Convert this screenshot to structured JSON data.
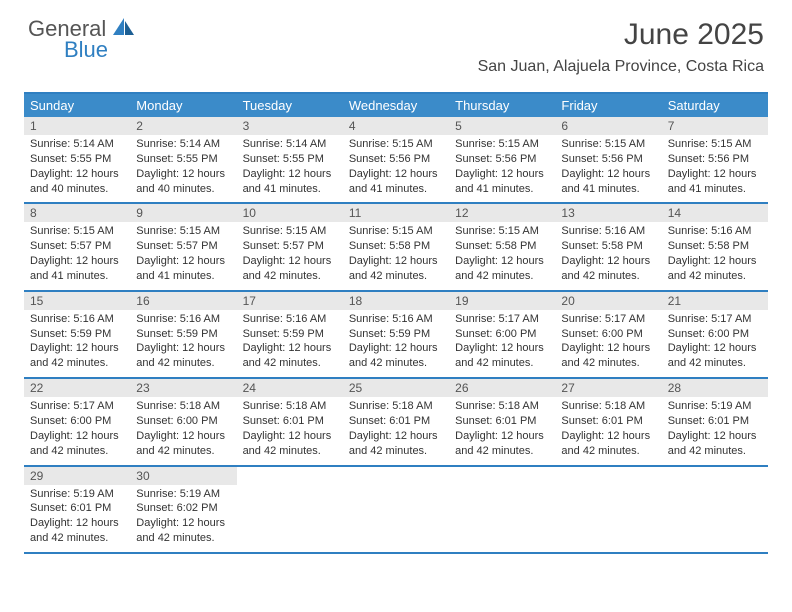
{
  "logo": {
    "text1": "General",
    "text2": "Blue"
  },
  "title": "June 2025",
  "location": "San Juan, Alajuela Province, Costa Rica",
  "colors": {
    "header_bar": "#3b8bc9",
    "accent_border": "#2f7fc1",
    "daynum_bg": "#e8e8e8",
    "text": "#333333"
  },
  "daynames": [
    "Sunday",
    "Monday",
    "Tuesday",
    "Wednesday",
    "Thursday",
    "Friday",
    "Saturday"
  ],
  "weeks": [
    [
      {
        "n": "1",
        "sr": "5:14 AM",
        "ss": "5:55 PM",
        "dl": "12 hours and 40 minutes."
      },
      {
        "n": "2",
        "sr": "5:14 AM",
        "ss": "5:55 PM",
        "dl": "12 hours and 40 minutes."
      },
      {
        "n": "3",
        "sr": "5:14 AM",
        "ss": "5:55 PM",
        "dl": "12 hours and 41 minutes."
      },
      {
        "n": "4",
        "sr": "5:15 AM",
        "ss": "5:56 PM",
        "dl": "12 hours and 41 minutes."
      },
      {
        "n": "5",
        "sr": "5:15 AM",
        "ss": "5:56 PM",
        "dl": "12 hours and 41 minutes."
      },
      {
        "n": "6",
        "sr": "5:15 AM",
        "ss": "5:56 PM",
        "dl": "12 hours and 41 minutes."
      },
      {
        "n": "7",
        "sr": "5:15 AM",
        "ss": "5:56 PM",
        "dl": "12 hours and 41 minutes."
      }
    ],
    [
      {
        "n": "8",
        "sr": "5:15 AM",
        "ss": "5:57 PM",
        "dl": "12 hours and 41 minutes."
      },
      {
        "n": "9",
        "sr": "5:15 AM",
        "ss": "5:57 PM",
        "dl": "12 hours and 41 minutes."
      },
      {
        "n": "10",
        "sr": "5:15 AM",
        "ss": "5:57 PM",
        "dl": "12 hours and 42 minutes."
      },
      {
        "n": "11",
        "sr": "5:15 AM",
        "ss": "5:58 PM",
        "dl": "12 hours and 42 minutes."
      },
      {
        "n": "12",
        "sr": "5:15 AM",
        "ss": "5:58 PM",
        "dl": "12 hours and 42 minutes."
      },
      {
        "n": "13",
        "sr": "5:16 AM",
        "ss": "5:58 PM",
        "dl": "12 hours and 42 minutes."
      },
      {
        "n": "14",
        "sr": "5:16 AM",
        "ss": "5:58 PM",
        "dl": "12 hours and 42 minutes."
      }
    ],
    [
      {
        "n": "15",
        "sr": "5:16 AM",
        "ss": "5:59 PM",
        "dl": "12 hours and 42 minutes."
      },
      {
        "n": "16",
        "sr": "5:16 AM",
        "ss": "5:59 PM",
        "dl": "12 hours and 42 minutes."
      },
      {
        "n": "17",
        "sr": "5:16 AM",
        "ss": "5:59 PM",
        "dl": "12 hours and 42 minutes."
      },
      {
        "n": "18",
        "sr": "5:16 AM",
        "ss": "5:59 PM",
        "dl": "12 hours and 42 minutes."
      },
      {
        "n": "19",
        "sr": "5:17 AM",
        "ss": "6:00 PM",
        "dl": "12 hours and 42 minutes."
      },
      {
        "n": "20",
        "sr": "5:17 AM",
        "ss": "6:00 PM",
        "dl": "12 hours and 42 minutes."
      },
      {
        "n": "21",
        "sr": "5:17 AM",
        "ss": "6:00 PM",
        "dl": "12 hours and 42 minutes."
      }
    ],
    [
      {
        "n": "22",
        "sr": "5:17 AM",
        "ss": "6:00 PM",
        "dl": "12 hours and 42 minutes."
      },
      {
        "n": "23",
        "sr": "5:18 AM",
        "ss": "6:00 PM",
        "dl": "12 hours and 42 minutes."
      },
      {
        "n": "24",
        "sr": "5:18 AM",
        "ss": "6:01 PM",
        "dl": "12 hours and 42 minutes."
      },
      {
        "n": "25",
        "sr": "5:18 AM",
        "ss": "6:01 PM",
        "dl": "12 hours and 42 minutes."
      },
      {
        "n": "26",
        "sr": "5:18 AM",
        "ss": "6:01 PM",
        "dl": "12 hours and 42 minutes."
      },
      {
        "n": "27",
        "sr": "5:18 AM",
        "ss": "6:01 PM",
        "dl": "12 hours and 42 minutes."
      },
      {
        "n": "28",
        "sr": "5:19 AM",
        "ss": "6:01 PM",
        "dl": "12 hours and 42 minutes."
      }
    ],
    [
      {
        "n": "29",
        "sr": "5:19 AM",
        "ss": "6:01 PM",
        "dl": "12 hours and 42 minutes."
      },
      {
        "n": "30",
        "sr": "5:19 AM",
        "ss": "6:02 PM",
        "dl": "12 hours and 42 minutes."
      },
      null,
      null,
      null,
      null,
      null
    ]
  ],
  "labels": {
    "sunrise": "Sunrise: ",
    "sunset": "Sunset: ",
    "daylight": "Daylight: "
  }
}
